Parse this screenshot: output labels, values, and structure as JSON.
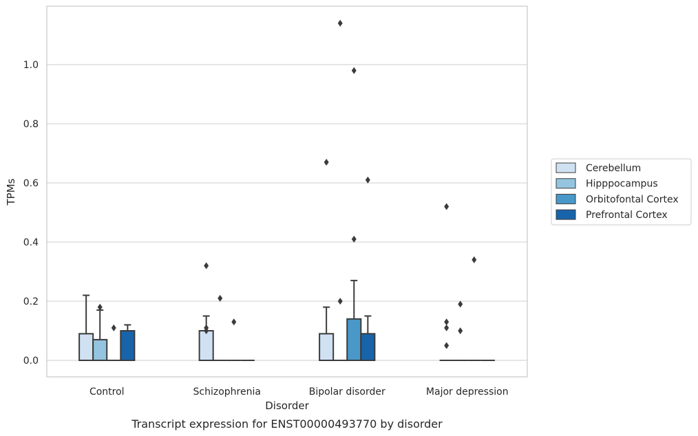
{
  "caption": "Transcript expression for ENST00000493770 by disorder",
  "chart_data": {
    "type": "box",
    "title": "",
    "xlabel": "Disorder",
    "ylabel": "TPMs",
    "ylim": [
      -0.055,
      1.2
    ],
    "yticks": [
      0.0,
      0.2,
      0.4,
      0.6,
      0.8,
      1.0
    ],
    "ytick_labels": [
      "0.0",
      "0.2",
      "0.4",
      "0.6",
      "0.8",
      "1.0"
    ],
    "grid": "horizontal",
    "legend_position": "right",
    "categories": [
      "Control",
      "Schizophrenia",
      "Bipolar disorder",
      "Major depression"
    ],
    "series": [
      {
        "name": "Cerebellum",
        "color": "#d0e1f2",
        "boxes": [
          {
            "q1": 0,
            "median": 0,
            "q3": 0.09,
            "whislo": 0,
            "whishi": 0.22,
            "fliers": []
          },
          {
            "q1": 0,
            "median": 0,
            "q3": 0.1,
            "whislo": 0,
            "whishi": 0.15,
            "fliers": [
              0.1,
              0.11,
              0.32
            ]
          },
          {
            "q1": 0,
            "median": 0,
            "q3": 0.09,
            "whislo": 0,
            "whishi": 0.18,
            "fliers": [
              0.67
            ]
          },
          {
            "q1": 0,
            "median": 0,
            "q3": 0,
            "whislo": 0,
            "whishi": 0,
            "fliers": [
              0.05,
              0.11,
              0.13,
              0.52
            ]
          }
        ]
      },
      {
        "name": "Hipppocampus",
        "color": "#94c4df",
        "boxes": [
          {
            "q1": 0,
            "median": 0,
            "q3": 0.07,
            "whislo": 0,
            "whishi": 0.17,
            "fliers": [
              0.18
            ]
          },
          {
            "q1": 0,
            "median": 0,
            "q3": 0,
            "whislo": 0,
            "whishi": 0,
            "fliers": [
              0.21
            ]
          },
          {
            "q1": 0,
            "median": 0,
            "q3": 0,
            "whislo": 0,
            "whishi": 0,
            "fliers": [
              0.2,
              1.14
            ]
          },
          {
            "q1": 0,
            "median": 0,
            "q3": 0,
            "whislo": 0,
            "whishi": 0,
            "fliers": [
              0.1,
              0.19
            ]
          }
        ]
      },
      {
        "name": "Orbitofontal Cortex",
        "color": "#4a98c9",
        "boxes": [
          {
            "q1": 0,
            "median": 0,
            "q3": 0,
            "whislo": 0,
            "whishi": 0,
            "fliers": [
              0.11
            ]
          },
          {
            "q1": 0,
            "median": 0,
            "q3": 0,
            "whislo": 0,
            "whishi": 0,
            "fliers": [
              0.13
            ]
          },
          {
            "q1": 0,
            "median": 0,
            "q3": 0.14,
            "whislo": 0,
            "whishi": 0.27,
            "fliers": [
              0.41,
              0.98
            ]
          },
          {
            "q1": 0,
            "median": 0,
            "q3": 0,
            "whislo": 0,
            "whishi": 0,
            "fliers": [
              0.34
            ]
          }
        ]
      },
      {
        "name": "Prefrontal Cortex",
        "color": "#1764ab",
        "boxes": [
          {
            "q1": 0,
            "median": 0.1,
            "q3": 0.1,
            "whislo": 0,
            "whishi": 0.12,
            "fliers": []
          },
          {
            "q1": 0,
            "median": 0,
            "q3": 0,
            "whislo": 0,
            "whishi": 0,
            "fliers": []
          },
          {
            "q1": 0,
            "median": 0,
            "q3": 0.09,
            "whislo": 0,
            "whishi": 0.15,
            "fliers": [
              0.61
            ]
          },
          {
            "q1": 0,
            "median": 0,
            "q3": 0,
            "whislo": 0,
            "whishi": 0,
            "fliers": []
          }
        ]
      }
    ]
  }
}
